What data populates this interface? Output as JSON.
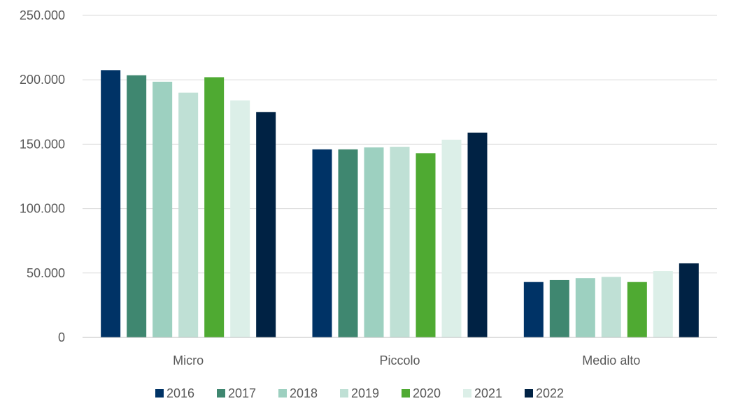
{
  "chart_data": {
    "type": "bar",
    "categories": [
      "Micro",
      "Piccolo",
      "Medio alto"
    ],
    "series": [
      {
        "name": "2016",
        "color": "#003366",
        "values": [
          207500,
          146000,
          43000
        ]
      },
      {
        "name": "2017",
        "color": "#3f8770",
        "values": [
          203500,
          146000,
          44500
        ]
      },
      {
        "name": "2018",
        "color": "#9dd0c0",
        "values": [
          198500,
          147500,
          46000
        ]
      },
      {
        "name": "2019",
        "color": "#bfe0d5",
        "values": [
          190000,
          148000,
          47000
        ]
      },
      {
        "name": "2020",
        "color": "#4faa32",
        "values": [
          202000,
          143000,
          43000
        ]
      },
      {
        "name": "2021",
        "color": "#dcefe8",
        "values": [
          184000,
          153500,
          51500
        ]
      },
      {
        "name": "2022",
        "color": "#002244",
        "values": [
          175000,
          159000,
          57500
        ]
      }
    ],
    "ylim": [
      0,
      250000
    ],
    "yticks": [
      {
        "value": 0,
        "label": "0"
      },
      {
        "value": 50000,
        "label": "50.000"
      },
      {
        "value": 100000,
        "label": "100.000"
      },
      {
        "value": 150000,
        "label": "150.000"
      },
      {
        "value": 200000,
        "label": "200.000"
      },
      {
        "value": 250000,
        "label": "250.000"
      }
    ],
    "grid": true,
    "legend_position": "bottom"
  }
}
